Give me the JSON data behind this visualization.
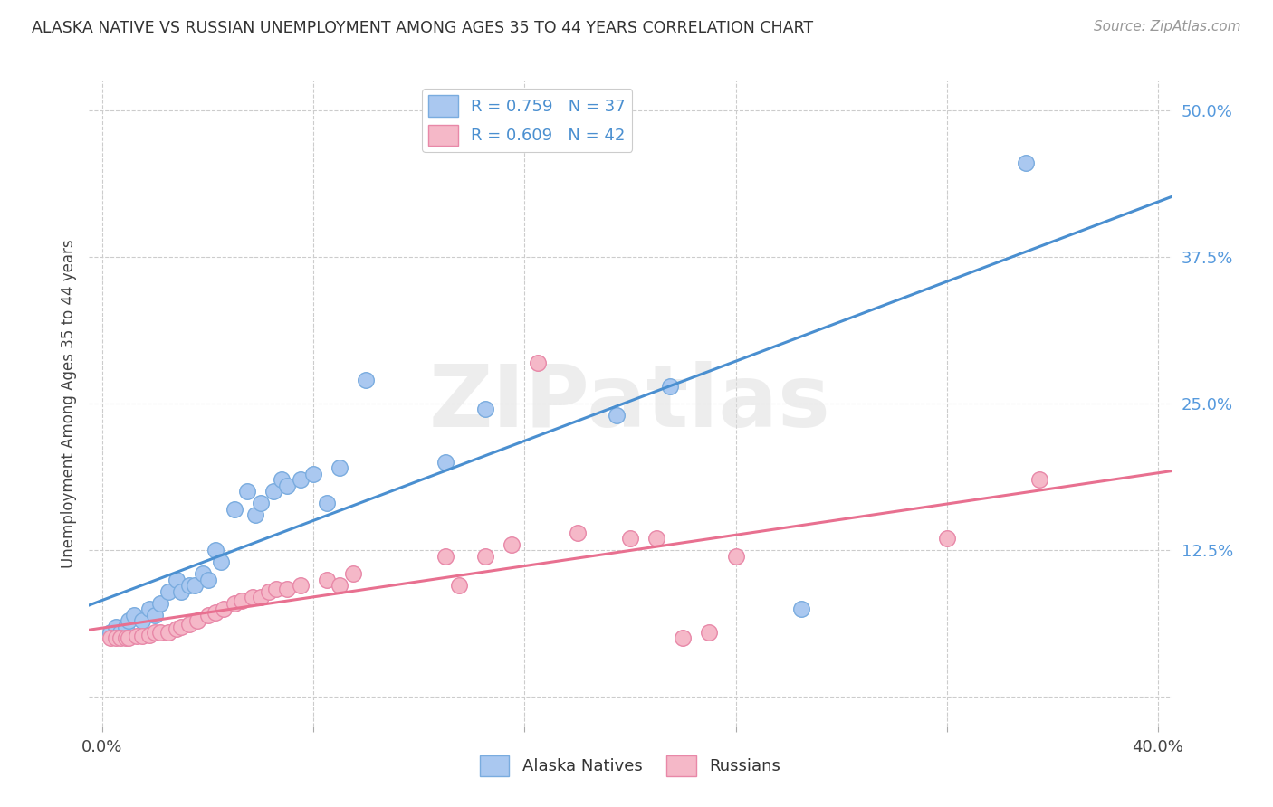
{
  "title": "ALASKA NATIVE VS RUSSIAN UNEMPLOYMENT AMONG AGES 35 TO 44 YEARS CORRELATION CHART",
  "source": "Source: ZipAtlas.com",
  "ylabel": "Unemployment Among Ages 35 to 44 years",
  "xlim": [
    -0.005,
    0.405
  ],
  "ylim": [
    -0.025,
    0.525
  ],
  "xtick_positions": [
    0.0,
    0.08,
    0.16,
    0.24,
    0.32,
    0.4
  ],
  "xtick_labels": [
    "0.0%",
    "",
    "",
    "",
    "",
    "40.0%"
  ],
  "ytick_right_positions": [
    0.0,
    0.125,
    0.25,
    0.375,
    0.5
  ],
  "ytick_right_labels": [
    "",
    "12.5%",
    "25.0%",
    "37.5%",
    "50.0%"
  ],
  "background_color": "#ffffff",
  "grid_color": "#cccccc",
  "watermark": "ZIPatlas",
  "legend_r1": "R = 0.759",
  "legend_n1": "N = 37",
  "legend_r2": "R = 0.609",
  "legend_n2": "N = 42",
  "alaska_color": "#aac8f0",
  "alaska_edge_color": "#7aacdf",
  "russian_color": "#f5b8c8",
  "russian_edge_color": "#e888a8",
  "line1_color": "#4a8fd0",
  "line2_color": "#e87090",
  "alaska_x": [
    0.003,
    0.005,
    0.007,
    0.009,
    0.01,
    0.012,
    0.015,
    0.018,
    0.02,
    0.022,
    0.025,
    0.028,
    0.03,
    0.033,
    0.035,
    0.038,
    0.04,
    0.043,
    0.045,
    0.05,
    0.055,
    0.058,
    0.06,
    0.065,
    0.068,
    0.07,
    0.075,
    0.08,
    0.085,
    0.09,
    0.1,
    0.13,
    0.145,
    0.195,
    0.215,
    0.265,
    0.35
  ],
  "alaska_y": [
    0.055,
    0.06,
    0.055,
    0.06,
    0.065,
    0.07,
    0.065,
    0.075,
    0.07,
    0.08,
    0.09,
    0.1,
    0.09,
    0.095,
    0.095,
    0.105,
    0.1,
    0.125,
    0.115,
    0.16,
    0.175,
    0.155,
    0.165,
    0.175,
    0.185,
    0.18,
    0.185,
    0.19,
    0.165,
    0.195,
    0.27,
    0.2,
    0.245,
    0.24,
    0.265,
    0.075,
    0.455
  ],
  "russian_x": [
    0.003,
    0.005,
    0.007,
    0.009,
    0.01,
    0.013,
    0.015,
    0.018,
    0.02,
    0.022,
    0.025,
    0.028,
    0.03,
    0.033,
    0.036,
    0.04,
    0.043,
    0.046,
    0.05,
    0.053,
    0.057,
    0.06,
    0.063,
    0.066,
    0.07,
    0.075,
    0.085,
    0.09,
    0.095,
    0.13,
    0.135,
    0.145,
    0.155,
    0.165,
    0.18,
    0.2,
    0.21,
    0.22,
    0.23,
    0.24,
    0.32,
    0.355
  ],
  "russian_y": [
    0.05,
    0.05,
    0.05,
    0.05,
    0.05,
    0.052,
    0.052,
    0.053,
    0.055,
    0.055,
    0.055,
    0.058,
    0.06,
    0.062,
    0.065,
    0.07,
    0.072,
    0.075,
    0.08,
    0.082,
    0.085,
    0.085,
    0.09,
    0.092,
    0.092,
    0.095,
    0.1,
    0.095,
    0.105,
    0.12,
    0.095,
    0.12,
    0.13,
    0.285,
    0.14,
    0.135,
    0.135,
    0.05,
    0.055,
    0.12,
    0.135,
    0.185
  ]
}
